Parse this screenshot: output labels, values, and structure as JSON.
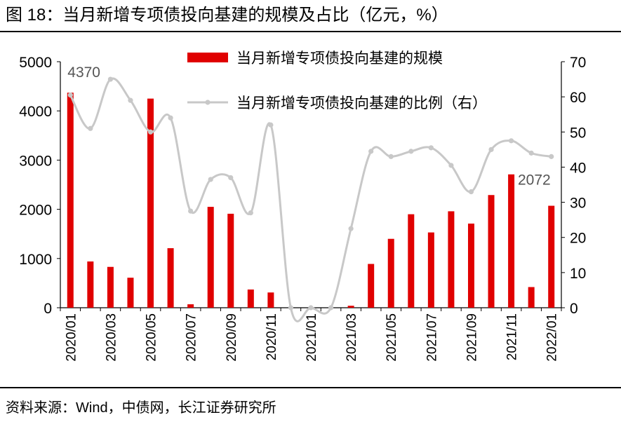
{
  "header": {
    "title": "图 18：当月新增专项债投向基建的规模及占比（亿元，%）"
  },
  "footer": {
    "source": "资料来源：Wind，中债网，长江证券研究所"
  },
  "colors": {
    "bar": "#e00000",
    "line": "#c8c8c8",
    "label": "#555555"
  },
  "chart_data": {
    "type": "bar",
    "categories": [
      "2020/01",
      "2020/02",
      "2020/03",
      "2020/04",
      "2020/05",
      "2020/06",
      "2020/07",
      "2020/08",
      "2020/09",
      "2020/10",
      "2020/11",
      "2020/12",
      "2021/01",
      "2021/02",
      "2021/03",
      "2021/04",
      "2021/05",
      "2021/06",
      "2021/07",
      "2021/08",
      "2021/09",
      "2021/10",
      "2021/11",
      "2021/12",
      "2022/01"
    ],
    "x_tick_labels": [
      "2020/01",
      "",
      "2020/03",
      "",
      "2020/05",
      "",
      "2020/07",
      "",
      "2020/09",
      "",
      "2020/11",
      "",
      "2021/01",
      "",
      "2021/03",
      "",
      "2021/05",
      "",
      "2021/07",
      "",
      "2021/09",
      "",
      "2021/11",
      "",
      "2022/01"
    ],
    "series": [
      {
        "name": "当月新增专项债投向基建的规模",
        "type": "bar",
        "axis": "left",
        "values": [
          4370,
          940,
          830,
          610,
          4250,
          1210,
          70,
          2050,
          1910,
          370,
          310,
          0,
          0,
          0,
          40,
          890,
          1400,
          1900,
          1530,
          1960,
          1710,
          2290,
          2710,
          420,
          2072
        ]
      },
      {
        "name": "当月新增专项债投向基建的比例（右）",
        "type": "line",
        "axis": "right",
        "values": [
          60.5,
          51,
          65,
          59,
          50,
          54,
          27.5,
          36.5,
          37,
          27,
          52,
          0,
          0,
          0,
          22.5,
          44.5,
          43,
          44.5,
          45.5,
          40.5,
          33,
          45,
          47.5,
          44,
          43
        ]
      }
    ],
    "annotations": [
      {
        "index": 0,
        "series": 0,
        "text": "4370"
      },
      {
        "index": 24,
        "series": 0,
        "text": "2072"
      }
    ],
    "y_left": {
      "min": 0,
      "max": 5000,
      "step": 1000,
      "ticks": [
        "0",
        "1000",
        "2000",
        "3000",
        "4000",
        "5000"
      ]
    },
    "y_right": {
      "min": 0,
      "max": 70,
      "step": 10,
      "ticks": [
        "0",
        "10",
        "20",
        "30",
        "40",
        "50",
        "60",
        "70"
      ]
    },
    "legend": {
      "position": "top-center"
    },
    "grid": false
  }
}
